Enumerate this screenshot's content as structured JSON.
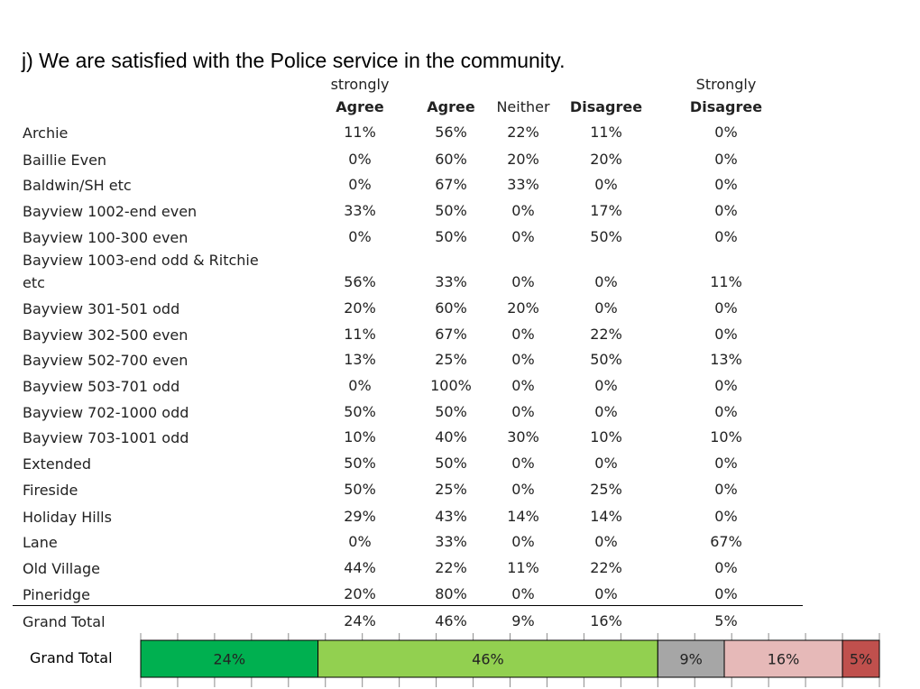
{
  "title": "j) We are satisfied with the Police service in the community.",
  "columns": [
    {
      "top": "strongly",
      "bottom": "Agree",
      "bold": true
    },
    {
      "top": "",
      "bottom": "Agree",
      "bold": true
    },
    {
      "top": "",
      "bottom": "Neither",
      "bold": false
    },
    {
      "top": "",
      "bottom": "Disagree",
      "bold": true
    },
    {
      "top": "Strongly",
      "bottom": "Disagree",
      "bold": true
    }
  ],
  "chart_data": [
    {
      "type": "table",
      "columns": [
        "strongly Agree",
        "Agree",
        "Neither",
        "Disagree",
        "Strongly Disagree"
      ],
      "rows": [
        {
          "label": [
            "Archie"
          ],
          "values": [
            "11%",
            "56%",
            "22%",
            "11%",
            "0%"
          ]
        },
        {
          "label": [
            "Baillie Even"
          ],
          "values": [
            "0%",
            "60%",
            "20%",
            "20%",
            "0%"
          ]
        },
        {
          "label": [
            "Baldwin/SH etc"
          ],
          "values": [
            "0%",
            "67%",
            "33%",
            "0%",
            "0%"
          ]
        },
        {
          "label": [
            "Bayview 1002-end even"
          ],
          "values": [
            "33%",
            "50%",
            "0%",
            "17%",
            "0%"
          ]
        },
        {
          "label": [
            "Bayview 100-300 even"
          ],
          "values": [
            "0%",
            "50%",
            "0%",
            "50%",
            "0%"
          ]
        },
        {
          "label": [
            "Bayview 1003-end odd & Ritchie",
            "etc"
          ],
          "values": [
            "56%",
            "33%",
            "0%",
            "0%",
            "11%"
          ]
        },
        {
          "label": [
            "Bayview 301-501 odd"
          ],
          "values": [
            "20%",
            "60%",
            "20%",
            "0%",
            "0%"
          ]
        },
        {
          "label": [
            "Bayview 302-500 even"
          ],
          "values": [
            "11%",
            "67%",
            "0%",
            "22%",
            "0%"
          ]
        },
        {
          "label": [
            "Bayview 502-700 even"
          ],
          "values": [
            "13%",
            "25%",
            "0%",
            "50%",
            "13%"
          ]
        },
        {
          "label": [
            "Bayview 503-701 odd"
          ],
          "values": [
            "0%",
            "100%",
            "0%",
            "0%",
            "0%"
          ]
        },
        {
          "label": [
            "Bayview 702-1000 odd"
          ],
          "values": [
            "50%",
            "50%",
            "0%",
            "0%",
            "0%"
          ]
        },
        {
          "label": [
            "Bayview 703-1001 odd"
          ],
          "values": [
            "10%",
            "40%",
            "30%",
            "10%",
            "10%"
          ]
        },
        {
          "label": [
            "Extended"
          ],
          "values": [
            "50%",
            "50%",
            "0%",
            "0%",
            "0%"
          ]
        },
        {
          "label": [
            "Fireside"
          ],
          "values": [
            "50%",
            "25%",
            "0%",
            "25%",
            "0%"
          ]
        },
        {
          "label": [
            "Holiday Hills"
          ],
          "values": [
            "29%",
            "43%",
            "14%",
            "14%",
            "0%"
          ]
        },
        {
          "label": [
            "Lane"
          ],
          "values": [
            "0%",
            "33%",
            "0%",
            "0%",
            "67%"
          ]
        },
        {
          "label": [
            "Old Village"
          ],
          "values": [
            "44%",
            "22%",
            "11%",
            "22%",
            "0%"
          ]
        },
        {
          "label": [
            "Pineridge"
          ],
          "values": [
            "20%",
            "80%",
            "0%",
            "0%",
            "0%"
          ]
        }
      ],
      "total_row": {
        "label": [
          "Grand Total"
        ],
        "values": [
          "24%",
          "46%",
          "9%",
          "16%",
          "5%"
        ]
      }
    },
    {
      "type": "bar",
      "stacked": true,
      "orientation": "horizontal",
      "categories": [
        "Grand Total"
      ],
      "series": [
        {
          "name": "strongly Agree",
          "values": [
            24
          ],
          "label": "24%",
          "color": "#00b050"
        },
        {
          "name": "Agree",
          "values": [
            46
          ],
          "label": "46%",
          "color": "#92d050"
        },
        {
          "name": "Neither",
          "values": [
            9
          ],
          "label": "9%",
          "color": "#a6a6a6"
        },
        {
          "name": "Disagree",
          "values": [
            16
          ],
          "label": "16%",
          "color": "#e6b9b8"
        },
        {
          "name": "Strongly Disagree",
          "values": [
            5
          ],
          "label": "5%",
          "color": "#c0504d"
        }
      ],
      "xlim": [
        0,
        100
      ],
      "grid": true,
      "legend": "none"
    }
  ]
}
